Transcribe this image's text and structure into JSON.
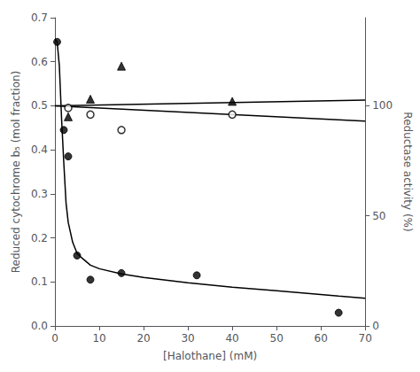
{
  "chart_data": {
    "type": "scatter",
    "xlabel": "[Halothane] (mM)",
    "ylabel": "Reduced cytochrome b₅ (mol fraction)",
    "y2label": "Reductase activity (%)",
    "xlim": [
      0,
      70
    ],
    "xticks": [
      0,
      10,
      20,
      30,
      40,
      50,
      60,
      70
    ],
    "ylim": [
      0,
      0.7
    ],
    "yticks": [
      {
        "value": 0,
        "label": "0.0"
      },
      0.1,
      0.2,
      0.3,
      0.4,
      0.5,
      0.6,
      0.7
    ],
    "y2lim": [
      0,
      140
    ],
    "y2ticks": [
      0,
      50,
      100
    ],
    "grid": false,
    "series": [
      {
        "type": "line",
        "color": "#000000",
        "x": [
          0.01,
          0.5,
          1.0,
          1.5,
          2.0,
          2.5,
          3.0,
          4.0,
          5.0,
          6.0,
          8.0,
          10.0,
          15.0,
          20.0,
          30.0,
          40.0,
          50.0,
          64.0,
          70.0
        ],
        "values": [
          0.652,
          0.645,
          0.59,
          0.47,
          0.37,
          0.28,
          0.235,
          0.19,
          0.165,
          0.155,
          0.138,
          0.13,
          0.118,
          0.11,
          0.098,
          0.088,
          0.08,
          0.068,
          0.063
        ]
      },
      {
        "type": "scatter",
        "marker": "circle",
        "color": "#000000",
        "x": [
          0.5,
          2,
          3,
          5,
          8,
          15,
          32,
          64
        ],
        "values": [
          0.645,
          0.445,
          0.385,
          0.16,
          0.105,
          0.12,
          0.115,
          0.03
        ]
      },
      {
        "type": "line",
        "color": "#000000",
        "x": [
          0,
          70
        ],
        "values": [
          0.5,
          0.465
        ]
      },
      {
        "type": "scatter",
        "marker": "open_circle",
        "color": "#000000",
        "x": [
          3,
          8,
          15,
          40
        ],
        "values": [
          0.495,
          0.48,
          0.445,
          0.48
        ]
      },
      {
        "type": "line",
        "color": "#000000",
        "x": [
          0,
          70
        ],
        "values": [
          0.5,
          0.513
        ]
      },
      {
        "type": "scatter",
        "marker": "triangle",
        "color": "#000000",
        "x": [
          3,
          8,
          15,
          40
        ],
        "values": [
          0.475,
          0.515,
          0.59,
          0.51
        ]
      }
    ]
  }
}
